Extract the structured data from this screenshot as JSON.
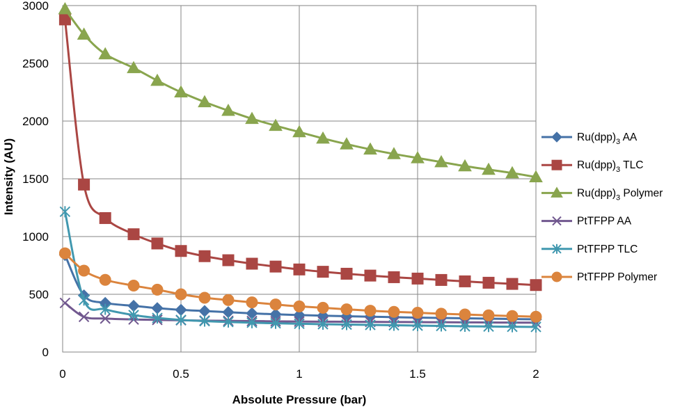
{
  "chart_data": {
    "type": "line",
    "title": "",
    "xlabel": "Absolute Pressure (bar)",
    "ylabel": "Intensity (AU)",
    "xlim": [
      0,
      2
    ],
    "ylim": [
      0,
      3000
    ],
    "x_ticks": [
      "0",
      "0.5",
      "1",
      "1.5",
      "2"
    ],
    "y_ticks": [
      "0",
      "500",
      "1000",
      "1500",
      "2000",
      "2500",
      "3000"
    ],
    "grid": true,
    "legend_position": "right",
    "x": [
      0.01,
      0.09,
      0.18,
      0.3,
      0.4,
      0.5,
      0.6,
      0.7,
      0.8,
      0.9,
      1.0,
      1.1,
      1.2,
      1.3,
      1.4,
      1.5,
      1.6,
      1.7,
      1.8,
      1.9,
      2.0
    ],
    "series": [
      {
        "name": "Ru(dpp)3 AA",
        "label_main": "Ru(dpp)",
        "label_sub": "3",
        "label_rest": " AA",
        "color": "#4572a7",
        "marker": "diamond",
        "values": [
          840,
          490,
          425,
          400,
          380,
          365,
          355,
          345,
          335,
          327,
          320,
          315,
          310,
          306,
          302,
          298,
          295,
          292,
          289,
          286,
          283
        ]
      },
      {
        "name": "Ru(dpp)3 TLC",
        "label_main": "Ru(dpp)",
        "label_sub": "3",
        "label_rest": " TLC",
        "color": "#aa4643",
        "marker": "square",
        "values": [
          2880,
          1450,
          1160,
          1020,
          940,
          875,
          830,
          795,
          765,
          740,
          715,
          695,
          678,
          662,
          648,
          636,
          624,
          612,
          600,
          590,
          580
        ]
      },
      {
        "name": "Ru(dpp)3 Polymer",
        "label_main": "Ru(dpp)",
        "label_sub": "3",
        "label_rest": " Polymer",
        "color": "#89a54e",
        "marker": "triangle",
        "values": [
          2970,
          2750,
          2580,
          2460,
          2350,
          2250,
          2165,
          2090,
          2020,
          1960,
          1905,
          1850,
          1800,
          1755,
          1715,
          1680,
          1645,
          1610,
          1580,
          1550,
          1515
        ]
      },
      {
        "name": "PtTFPP AA",
        "label_main": "PtTFPP AA",
        "label_sub": "",
        "label_rest": "",
        "color": "#71588f",
        "marker": "x",
        "values": [
          425,
          305,
          290,
          282,
          278,
          275,
          272,
          270,
          268,
          266,
          264,
          263,
          262,
          261,
          260,
          259,
          258,
          257,
          256,
          255,
          254
        ]
      },
      {
        "name": "PtTFPP TLC",
        "label_main": "PtTFPP TLC",
        "label_sub": "",
        "label_rest": "",
        "color": "#4198af",
        "marker": "star",
        "values": [
          1215,
          450,
          370,
          320,
          295,
          278,
          268,
          260,
          254,
          249,
          245,
          241,
          238,
          235,
          232,
          229,
          226,
          223,
          221,
          219,
          217
        ]
      },
      {
        "name": "PtTFPP Polymer",
        "label_main": "PtTFPP Polymer",
        "label_sub": "",
        "label_rest": "",
        "color": "#db843d",
        "marker": "circle",
        "values": [
          855,
          705,
          625,
          575,
          540,
          500,
          470,
          450,
          430,
          412,
          395,
          383,
          370,
          358,
          348,
          340,
          332,
          325,
          318,
          312,
          306
        ]
      }
    ]
  }
}
